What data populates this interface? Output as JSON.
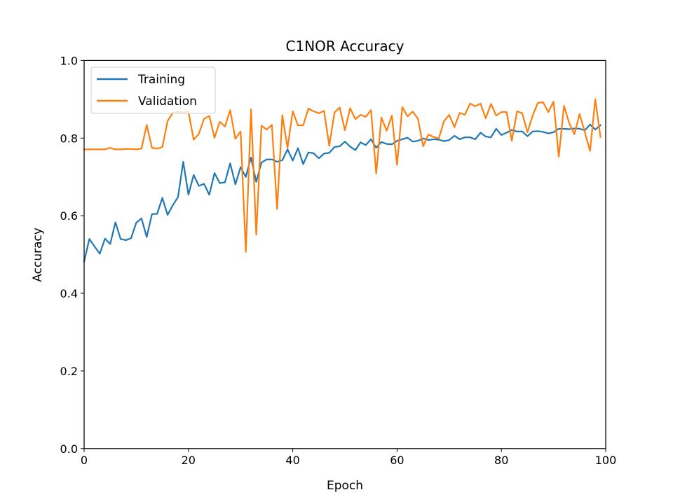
{
  "chart_data": {
    "type": "line",
    "title": "C1NOR Accuracy",
    "xlabel": "Epoch",
    "ylabel": "Accuracy",
    "xlim": [
      0,
      100
    ],
    "ylim": [
      0.0,
      1.0
    ],
    "x_ticks": [
      "0",
      "20",
      "40",
      "60",
      "80",
      "100"
    ],
    "y_ticks": [
      "0.0",
      "0.2",
      "0.4",
      "0.6",
      "0.8",
      "1.0"
    ],
    "x_tick_values": [
      0,
      20,
      40,
      60,
      80,
      100
    ],
    "y_tick_values": [
      0.0,
      0.2,
      0.4,
      0.6,
      0.8,
      1.0
    ],
    "grid": false,
    "legend_position": "upper-left",
    "series": [
      {
        "name": "Training",
        "color": "#1f77b4",
        "values": [
          0.482,
          0.54,
          0.521,
          0.502,
          0.541,
          0.527,
          0.583,
          0.54,
          0.537,
          0.542,
          0.582,
          0.593,
          0.545,
          0.604,
          0.605,
          0.646,
          0.602,
          0.627,
          0.648,
          0.739,
          0.654,
          0.705,
          0.677,
          0.682,
          0.654,
          0.71,
          0.684,
          0.686,
          0.735,
          0.681,
          0.725,
          0.7,
          0.75,
          0.687,
          0.737,
          0.745,
          0.745,
          0.739,
          0.743,
          0.771,
          0.742,
          0.774,
          0.733,
          0.763,
          0.761,
          0.748,
          0.76,
          0.762,
          0.777,
          0.779,
          0.791,
          0.778,
          0.769,
          0.789,
          0.782,
          0.797,
          0.775,
          0.79,
          0.785,
          0.784,
          0.793,
          0.797,
          0.801,
          0.791,
          0.793,
          0.799,
          0.795,
          0.797,
          0.796,
          0.792,
          0.795,
          0.806,
          0.797,
          0.802,
          0.802,
          0.797,
          0.814,
          0.804,
          0.802,
          0.824,
          0.808,
          0.814,
          0.821,
          0.817,
          0.817,
          0.805,
          0.817,
          0.818,
          0.816,
          0.812,
          0.815,
          0.824,
          0.824,
          0.823,
          0.825,
          0.824,
          0.82,
          0.835,
          0.822,
          0.833
        ]
      },
      {
        "name": "Validation",
        "color": "#ff7f0e",
        "values": [
          0.771,
          0.771,
          0.771,
          0.771,
          0.771,
          0.775,
          0.771,
          0.771,
          0.772,
          0.772,
          0.771,
          0.773,
          0.834,
          0.775,
          0.773,
          0.777,
          0.844,
          0.865,
          0.868,
          0.866,
          0.868,
          0.796,
          0.811,
          0.85,
          0.857,
          0.801,
          0.842,
          0.83,
          0.872,
          0.798,
          0.817,
          0.507,
          0.874,
          0.551,
          0.832,
          0.822,
          0.834,
          0.617,
          0.859,
          0.775,
          0.869,
          0.833,
          0.833,
          0.876,
          0.869,
          0.864,
          0.87,
          0.78,
          0.866,
          0.879,
          0.82,
          0.877,
          0.849,
          0.86,
          0.855,
          0.872,
          0.709,
          0.853,
          0.819,
          0.858,
          0.731,
          0.88,
          0.856,
          0.868,
          0.85,
          0.779,
          0.809,
          0.803,
          0.799,
          0.844,
          0.86,
          0.828,
          0.865,
          0.86,
          0.889,
          0.882,
          0.889,
          0.851,
          0.888,
          0.858,
          0.867,
          0.867,
          0.793,
          0.869,
          0.864,
          0.815,
          0.858,
          0.891,
          0.892,
          0.867,
          0.894,
          0.752,
          0.883,
          0.839,
          0.81,
          0.862,
          0.815,
          0.767,
          0.9,
          0.803
        ]
      }
    ]
  }
}
